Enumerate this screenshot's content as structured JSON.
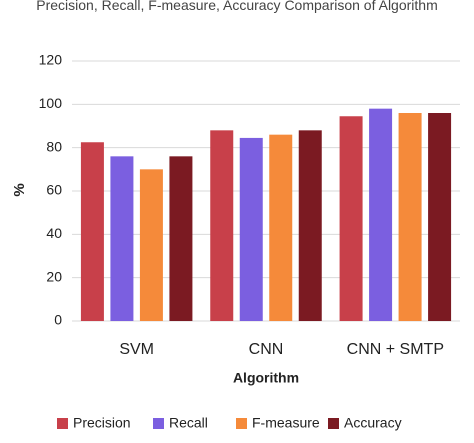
{
  "chart_data": {
    "type": "bar",
    "title": "Precision, Recall, F-measure, Accuracy Comparison of Algorithm",
    "x_label": "Algorithm",
    "y_label": "%",
    "categories": [
      "SVM",
      "CNN",
      "CNN + SMTP"
    ],
    "series": [
      {
        "name": "Precision",
        "color": "#c8404a",
        "values": [
          82.5,
          88,
          94.5
        ]
      },
      {
        "name": "Recall",
        "color": "#7b5fe0",
        "values": [
          76,
          84.5,
          98
        ]
      },
      {
        "name": "F-measure",
        "color": "#f58a3a",
        "values": [
          70,
          86,
          96
        ]
      },
      {
        "name": "Accuracy",
        "color": "#7b1a22",
        "values": [
          76,
          88,
          96
        ]
      }
    ],
    "ylim": [
      0,
      120
    ],
    "yticks": [
      0,
      20,
      40,
      60,
      80,
      100,
      120
    ],
    "grid": true,
    "legend": "bottom"
  }
}
